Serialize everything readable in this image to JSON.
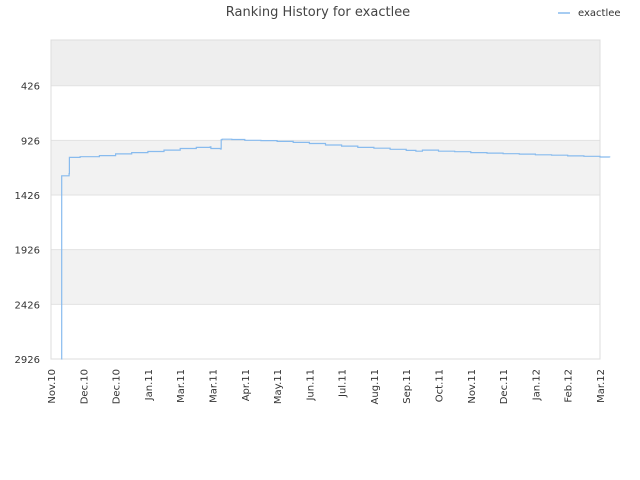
{
  "chart_data": {
    "type": "line",
    "title": "Ranking History for exactlee",
    "xlabel": "",
    "ylabel": "",
    "y_inverted": true,
    "ylim": [
      2926,
      0
    ],
    "y_ticks": [
      426,
      926,
      1426,
      1926,
      2426,
      2926
    ],
    "x_ticks": [
      "Nov.10",
      "Dec.10",
      "Dec.10",
      "Jan.11",
      "Mar.11",
      "Mar.11",
      "Apr.11",
      "May.11",
      "Jun.11",
      "Jul.11",
      "Aug.11",
      "Sep.11",
      "Oct.11",
      "Nov.11",
      "Dec.11",
      "Jan.12",
      "Feb.12",
      "Mar.12"
    ],
    "legend_position": "top-right",
    "grid": true,
    "series": [
      {
        "name": "exactlee",
        "color": "#88bbee",
        "points": [
          [
            0.32,
            2926
          ],
          [
            0.33,
            1250
          ],
          [
            0.56,
            1230
          ],
          [
            0.57,
            1082
          ],
          [
            0.9,
            1075
          ],
          [
            1.5,
            1065
          ],
          [
            2.0,
            1050
          ],
          [
            2.5,
            1038
          ],
          [
            3.0,
            1028
          ],
          [
            3.5,
            1015
          ],
          [
            4.0,
            1000
          ],
          [
            4.5,
            990
          ],
          [
            4.93,
            985
          ],
          [
            4.95,
            1000
          ],
          [
            5.25,
            1005
          ],
          [
            5.27,
            920
          ],
          [
            5.3,
            915
          ],
          [
            5.6,
            918
          ],
          [
            6.0,
            925
          ],
          [
            6.5,
            928
          ],
          [
            7.0,
            935
          ],
          [
            7.5,
            945
          ],
          [
            8.0,
            955
          ],
          [
            8.5,
            968
          ],
          [
            9.0,
            978
          ],
          [
            9.5,
            990
          ],
          [
            10.0,
            998
          ],
          [
            10.5,
            1008
          ],
          [
            11.0,
            1018
          ],
          [
            11.3,
            1025
          ],
          [
            11.5,
            1015
          ],
          [
            12.0,
            1025
          ],
          [
            12.5,
            1030
          ],
          [
            13.0,
            1038
          ],
          [
            13.5,
            1042
          ],
          [
            14.0,
            1048
          ],
          [
            14.5,
            1052
          ],
          [
            15.0,
            1058
          ],
          [
            15.5,
            1062
          ],
          [
            16.0,
            1068
          ],
          [
            16.5,
            1072
          ],
          [
            17.0,
            1078
          ],
          [
            17.3,
            1082
          ]
        ]
      }
    ]
  }
}
